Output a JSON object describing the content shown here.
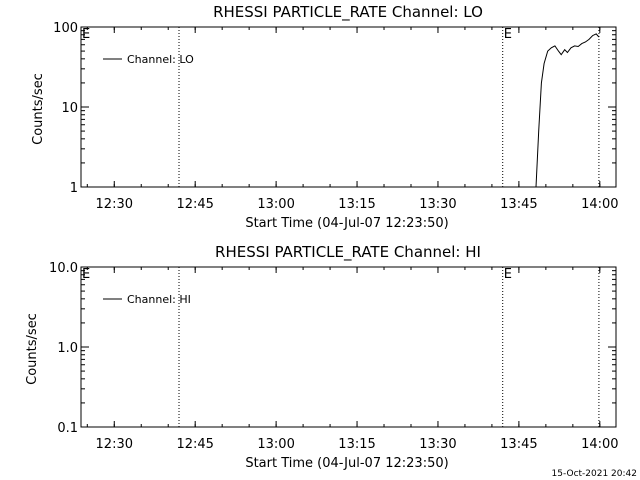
{
  "chart_data": [
    {
      "type": "line",
      "title": "RHESSI PARTICLE_RATE Channel: LO",
      "xlabel": "Start Time (04-Jul-07 12:23:50)",
      "ylabel": "Counts/sec",
      "y_scale": "log",
      "ylim": [
        1,
        100
      ],
      "ytick_labels": [
        "1",
        "10",
        "100"
      ],
      "xtick_labels": [
        "12:30",
        "12:45",
        "13:00",
        "13:15",
        "13:30",
        "13:45",
        "14:00"
      ],
      "xlim": [
        "12:23:50",
        "14:03:00"
      ],
      "markers": [
        {
          "label": "E",
          "time": "12:23:50"
        },
        {
          "label": "",
          "time": "12:42:00"
        },
        {
          "label": "E",
          "time": "13:42:00"
        },
        {
          "label": "",
          "time": "13:59:50"
        }
      ],
      "legend": {
        "placement": "top-left",
        "entries": [
          "Channel: LO"
        ]
      },
      "series": [
        {
          "name": "Channel: LO",
          "x": [
            "13:48:10",
            "13:48:40",
            "13:49:10",
            "13:49:40",
            "13:50:20",
            "13:51:00",
            "13:51:40",
            "13:52:20",
            "13:52:50",
            "13:53:30",
            "13:54:00",
            "13:54:40",
            "13:55:20",
            "13:56:00",
            "13:56:40",
            "13:57:20",
            "13:58:00",
            "13:58:40",
            "13:59:20",
            "13:59:50"
          ],
          "values": [
            1,
            5,
            20,
            35,
            50,
            55,
            58,
            50,
            45,
            52,
            48,
            55,
            58,
            57,
            62,
            65,
            70,
            78,
            82,
            75
          ]
        }
      ]
    },
    {
      "type": "line",
      "title": "RHESSI PARTICLE_RATE Channel: HI",
      "xlabel": "Start Time (04-Jul-07 12:23:50)",
      "ylabel": "Counts/sec",
      "y_scale": "log",
      "ylim": [
        0.1,
        10
      ],
      "ytick_labels": [
        "0.1",
        "1.0",
        "10.0"
      ],
      "xtick_labels": [
        "12:30",
        "12:45",
        "13:00",
        "13:15",
        "13:30",
        "13:45",
        "14:00"
      ],
      "xlim": [
        "12:23:50",
        "14:03:00"
      ],
      "markers": [
        {
          "label": "E",
          "time": "12:23:50"
        },
        {
          "label": "",
          "time": "12:42:00"
        },
        {
          "label": "E",
          "time": "13:42:00"
        },
        {
          "label": "",
          "time": "13:59:50"
        }
      ],
      "legend": {
        "placement": "top-left",
        "entries": [
          "Channel: HI"
        ]
      },
      "series": [
        {
          "name": "Channel: HI",
          "x": [],
          "values": []
        }
      ]
    }
  ],
  "footer": {
    "timestamp": "15-Oct-2021 20:42"
  }
}
